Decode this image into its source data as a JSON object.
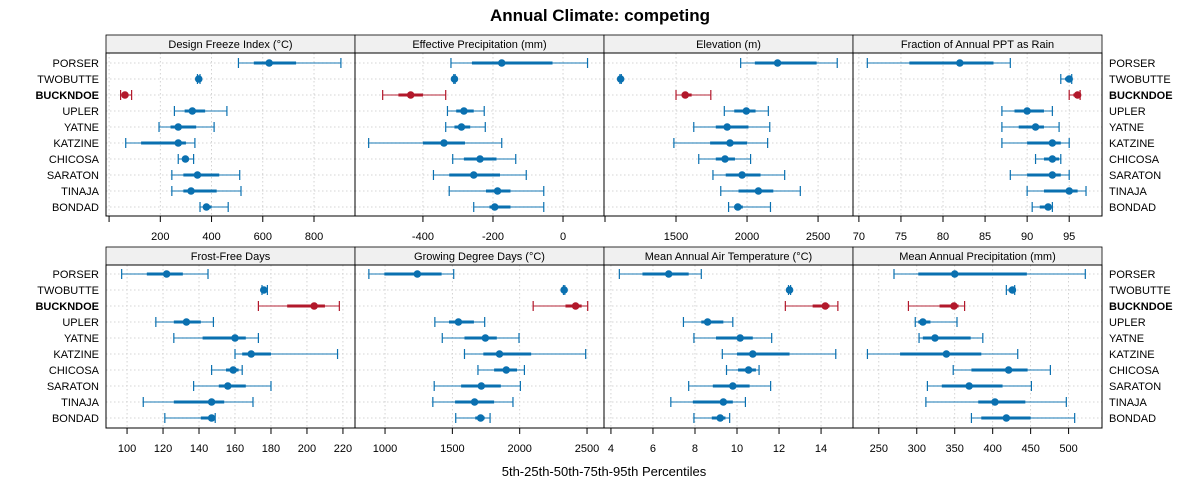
{
  "chart_data": {
    "type": "dotplot-percentiles",
    "title": "Annual Climate: competing",
    "xlabel": "5th-25th-50th-75th-95th Percentiles",
    "percentiles": [
      "5th",
      "25th",
      "50th",
      "75th",
      "95th"
    ],
    "categories": [
      "PORSER",
      "TWOBUTTE",
      "BUCKNDOE",
      "UPLER",
      "YATNE",
      "KATZINE",
      "CHICOSA",
      "SARATON",
      "TINAJA",
      "BONDAD"
    ],
    "highlight": "BUCKNDOE",
    "colors": {
      "default": "#0a70b0",
      "highlight": "#b2182b",
      "strip_bg": "#f0f0f0",
      "grid": "#c8c8c8"
    },
    "grid": true,
    "panels": [
      {
        "name": "Design Freeze Index (°C)",
        "xlim": [
          -12,
          960
        ],
        "ticks": [
          0,
          200,
          400,
          600,
          800
        ],
        "tick_labels": [
          "",
          "200",
          "400",
          "600",
          "800"
        ],
        "values": {
          "PORSER": [
            505,
            565,
            625,
            730,
            905
          ],
          "TWOBUTTE": [
            345,
            347,
            350,
            352,
            355
          ],
          "BUCKNDOE": [
            45,
            52,
            62,
            70,
            88
          ],
          "UPLER": [
            255,
            295,
            325,
            375,
            460
          ],
          "YATNE": [
            195,
            240,
            270,
            340,
            410
          ],
          "KATZINE": [
            65,
            125,
            270,
            300,
            335
          ],
          "CHICOSA": [
            270,
            285,
            298,
            310,
            330
          ],
          "SARATON": [
            245,
            290,
            345,
            430,
            510
          ],
          "TINAJA": [
            245,
            290,
            320,
            420,
            515
          ],
          "BONDAD": [
            355,
            370,
            380,
            400,
            465
          ]
        }
      },
      {
        "name": "Effective Precipitation (mm)",
        "xlim": [
          -594,
          117
        ],
        "ticks": [
          -400,
          -200,
          0
        ],
        "tick_labels": [
          "-400",
          "-200",
          "0"
        ],
        "values": {
          "PORSER": [
            -320,
            -260,
            -175,
            -30,
            70
          ],
          "TWOBUTTE": [
            -312,
            -311,
            -310,
            -309,
            -308
          ],
          "BUCKNDOE": [
            -515,
            -470,
            -435,
            -400,
            -335
          ],
          "UPLER": [
            -330,
            -305,
            -283,
            -255,
            -225
          ],
          "YATNE": [
            -335,
            -310,
            -290,
            -265,
            -222
          ],
          "KATZINE": [
            -555,
            -400,
            -340,
            -280,
            -175
          ],
          "CHICOSA": [
            -315,
            -283,
            -237,
            -190,
            -135
          ],
          "SARATON": [
            -370,
            -325,
            -255,
            -180,
            -105
          ],
          "TINAJA": [
            -325,
            -220,
            -187,
            -150,
            -55
          ],
          "BONDAD": [
            -255,
            -210,
            -195,
            -150,
            -55
          ]
        }
      },
      {
        "name": "Elevation (m)",
        "xlim": [
          993,
          2746
        ],
        "ticks": [
          1000,
          1500,
          2000,
          2500
        ],
        "tick_labels": [
          "",
          "1500",
          "2000",
          "2500"
        ],
        "values": {
          "PORSER": [
            1955,
            2055,
            2215,
            2490,
            2635
          ],
          "TWOBUTTE": [
            1105,
            1108,
            1110,
            1113,
            1115
          ],
          "BUCKNDOE": [
            1500,
            1540,
            1565,
            1610,
            1745
          ],
          "UPLER": [
            1840,
            1910,
            1995,
            2060,
            2150
          ],
          "YATNE": [
            1625,
            1780,
            1860,
            2010,
            2160
          ],
          "KATZINE": [
            1485,
            1740,
            1880,
            2000,
            2145
          ],
          "CHICOSA": [
            1660,
            1780,
            1845,
            1915,
            2025
          ],
          "SARATON": [
            1760,
            1850,
            1965,
            2095,
            2265
          ],
          "TINAJA": [
            1815,
            1940,
            2080,
            2185,
            2375
          ],
          "BONDAD": [
            1870,
            1910,
            1935,
            1970,
            2165
          ]
        }
      },
      {
        "name": "Fraction of Annual PPT as Rain",
        "xlim": [
          69.3,
          98.9
        ],
        "ticks": [
          70,
          75,
          80,
          85,
          90,
          95
        ],
        "tick_labels": [
          "70",
          "75",
          "80",
          "85",
          "90",
          "95"
        ],
        "values": {
          "PORSER": [
            71,
            76,
            82,
            86,
            88
          ],
          "TWOBUTTE": [
            94,
            94.5,
            95,
            95.2,
            95.3
          ],
          "BUCKNDOE": [
            95,
            95.5,
            96,
            96.2,
            96.3
          ],
          "UPLER": [
            87,
            88.5,
            90,
            92,
            93
          ],
          "YATNE": [
            87,
            89,
            91,
            92,
            93.8
          ],
          "KATZINE": [
            87,
            90,
            93,
            94,
            95
          ],
          "CHICOSA": [
            91,
            92,
            93,
            93.8,
            94
          ],
          "SARATON": [
            88,
            90,
            93,
            94,
            95
          ],
          "TINAJA": [
            90,
            92,
            95,
            96,
            97
          ],
          "BONDAD": [
            90.6,
            91.5,
            92.5,
            92.8,
            93
          ]
        }
      },
      {
        "name": "Frost-Free Days",
        "xlim": [
          88.3,
          226.7
        ],
        "ticks": [
          100,
          120,
          140,
          160,
          180,
          200,
          220
        ],
        "tick_labels": [
          "100",
          "120",
          "140",
          "160",
          "180",
          "200",
          "220"
        ],
        "values": {
          "PORSER": [
            97,
            111,
            122,
            131,
            145
          ],
          "TWOBUTTE": [
            175,
            175.5,
            176,
            177,
            178
          ],
          "BUCKNDOE": [
            173,
            189,
            204,
            210,
            218
          ],
          "UPLER": [
            116,
            126,
            133,
            141,
            148
          ],
          "YATNE": [
            126,
            142,
            160,
            166,
            173
          ],
          "KATZINE": [
            160,
            164,
            169,
            180,
            217
          ],
          "CHICOSA": [
            147,
            155,
            159,
            162,
            164
          ],
          "SARATON": [
            137,
            151,
            156,
            166,
            180
          ],
          "TINAJA": [
            109,
            126,
            147,
            154,
            170
          ],
          "BONDAD": [
            121,
            141,
            147,
            148,
            149
          ]
        }
      },
      {
        "name": "Growing Degree Days (°C)",
        "xlim": [
          777,
          2626
        ],
        "ticks": [
          1000,
          1500,
          2000,
          2500
        ],
        "tick_labels": [
          "1000",
          "1500",
          "2000",
          "2500"
        ],
        "values": {
          "PORSER": [
            880,
            995,
            1240,
            1420,
            1510
          ],
          "TWOBUTTE": [
            2325,
            2328,
            2330,
            2332,
            2335
          ],
          "BUCKNDOE": [
            2100,
            2340,
            2415,
            2460,
            2505
          ],
          "UPLER": [
            1370,
            1475,
            1545,
            1660,
            1740
          ],
          "YATNE": [
            1425,
            1590,
            1745,
            1830,
            1995
          ],
          "KATZINE": [
            1590,
            1730,
            1850,
            2085,
            2490
          ],
          "CHICOSA": [
            1690,
            1810,
            1900,
            1980,
            2035
          ],
          "SARATON": [
            1365,
            1565,
            1715,
            1860,
            2005
          ],
          "TINAJA": [
            1355,
            1520,
            1665,
            1810,
            1950
          ],
          "BONDAD": [
            1525,
            1670,
            1710,
            1740,
            1780
          ]
        }
      },
      {
        "name": "Mean Annual Air Temperature (°C)",
        "xlim": [
          3.67,
          15.52
        ],
        "ticks": [
          4,
          6,
          8,
          10,
          12,
          14
        ],
        "tick_labels": [
          "4",
          "6",
          "8",
          "10",
          "12",
          "14"
        ],
        "values": {
          "PORSER": [
            4.4,
            5.5,
            6.75,
            7.7,
            8.3
          ],
          "TWOBUTTE": [
            12.45,
            12.47,
            12.5,
            12.52,
            12.55
          ],
          "BUCKNDOE": [
            12.3,
            13.6,
            14.2,
            14.4,
            14.8
          ],
          "UPLER": [
            7.45,
            8.3,
            8.6,
            9.35,
            9.8
          ],
          "YATNE": [
            7.95,
            9.0,
            10.15,
            10.75,
            11.65
          ],
          "KATZINE": [
            9.3,
            10.0,
            10.75,
            12.5,
            14.7
          ],
          "CHICOSA": [
            9.5,
            10.05,
            10.55,
            10.9,
            11.05
          ],
          "SARATON": [
            7.7,
            8.85,
            9.8,
            10.6,
            11.6
          ],
          "TINAJA": [
            6.85,
            7.9,
            9.35,
            9.8,
            10.4
          ],
          "BONDAD": [
            7.95,
            8.8,
            9.2,
            9.45,
            9.65
          ]
        }
      },
      {
        "name": "Mean Annual Precipitation (mm)",
        "xlim": [
          216,
          544
        ],
        "ticks": [
          250,
          300,
          350,
          400,
          450,
          500
        ],
        "tick_labels": [
          "250",
          "300",
          "350",
          "400",
          "450",
          "500"
        ],
        "values": {
          "PORSER": [
            270,
            302,
            350,
            445,
            522
          ],
          "TWOBUTTE": [
            418,
            421,
            426,
            428,
            429
          ],
          "BUCKNDOE": [
            289,
            330,
            349,
            355,
            363
          ],
          "UPLER": [
            298,
            302,
            308,
            318,
            353
          ],
          "YATNE": [
            303,
            308,
            324,
            371,
            387
          ],
          "KATZINE": [
            235,
            278,
            339,
            385,
            433
          ],
          "CHICOSA": [
            348,
            372,
            421,
            446,
            476
          ],
          "SARATON": [
            314,
            333,
            369,
            413,
            451
          ],
          "TINAJA": [
            312,
            381,
            403,
            443,
            497
          ],
          "BONDAD": [
            372,
            385,
            418,
            450,
            508
          ]
        }
      }
    ]
  }
}
